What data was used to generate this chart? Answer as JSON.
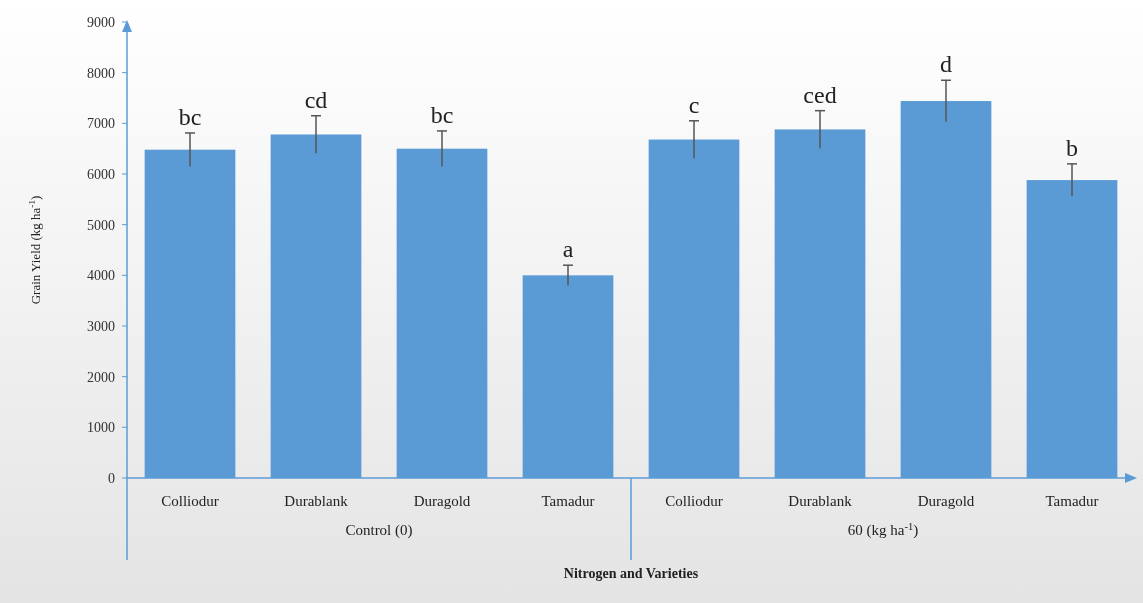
{
  "chart_data": {
    "type": "bar",
    "xlabel": "Nitrogen and Varieties",
    "ylabel": "Grain Yield (kg ha$^{-1}$)",
    "categories": [
      "Colliodur",
      "Durablank",
      "Duragold",
      "Tamadur",
      "Colliodur",
      "Durablank",
      "Duragold",
      "Tamadur"
    ],
    "values": [
      6480,
      6780,
      6500,
      4000,
      6680,
      6880,
      7440,
      5880
    ],
    "errors": [
      330,
      370,
      350,
      200,
      370,
      370,
      410,
      320
    ],
    "value_labels": [
      "bc",
      "cd",
      "bc",
      "a",
      "c",
      "ced",
      "d",
      "b"
    ],
    "color": "#5b9bd5",
    "ylim": [
      0,
      9000
    ],
    "yticks": [
      0,
      1000,
      2000,
      3000,
      4000,
      5000,
      6000,
      7000,
      8000,
      9000
    ],
    "annotations": [
      "Control (0)",
      "60 (kg ha$^{-1}$)"
    ],
    "grid": false
  }
}
